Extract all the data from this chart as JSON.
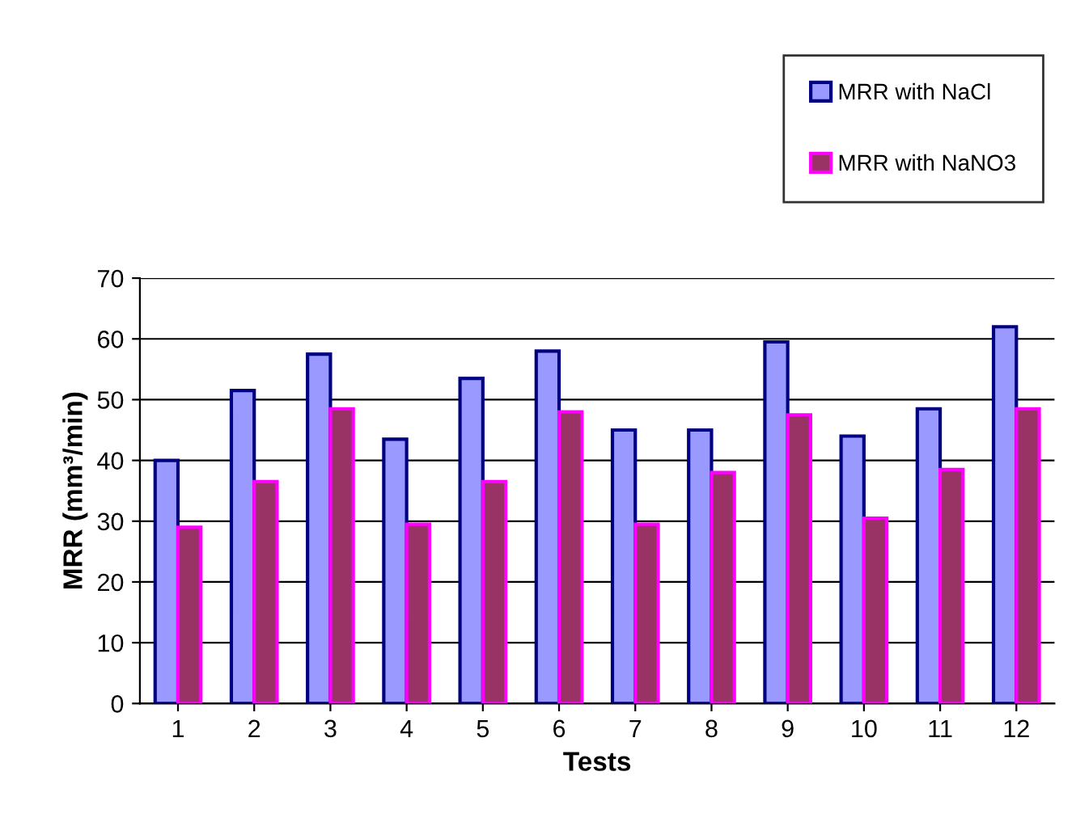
{
  "chart_data": {
    "type": "bar",
    "xlabel": "Tests",
    "ylabel": "MRR (mm³/min)",
    "categories": [
      "1",
      "2",
      "3",
      "4",
      "5",
      "6",
      "7",
      "8",
      "9",
      "10",
      "11",
      "12"
    ],
    "series": [
      {
        "name": "MRR with NaCl",
        "color": "#9999ff",
        "values": [
          40,
          51.5,
          57.5,
          43.5,
          53.5,
          58,
          45,
          45,
          59.5,
          44,
          48.5,
          62
        ]
      },
      {
        "name": "MRR with NaNO3",
        "color": "#993366",
        "values": [
          29,
          36.5,
          48.5,
          29.5,
          36.5,
          48,
          29.5,
          38,
          47.5,
          30.5,
          38.5,
          48.5
        ]
      }
    ],
    "ylim": [
      0,
      70
    ],
    "yticks": [
      0,
      10,
      20,
      30,
      40,
      50,
      60,
      70
    ],
    "grid": "y",
    "legend": "top right"
  }
}
